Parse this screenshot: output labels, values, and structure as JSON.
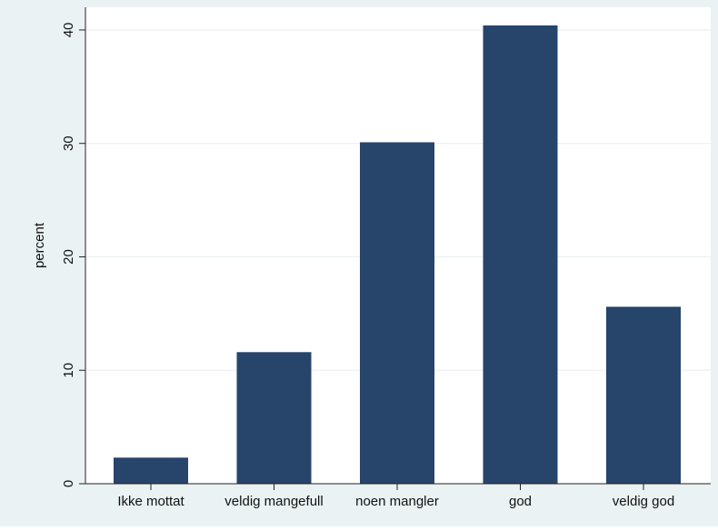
{
  "chart_data": {
    "type": "bar",
    "title": "",
    "xlabel": "",
    "ylabel": "percent",
    "categories": [
      "Ikke mottat",
      "veldig mangefull",
      "noen mangler",
      "god",
      "veldig god"
    ],
    "values": [
      2.3,
      11.6,
      30.1,
      40.4,
      15.6
    ],
    "ylim": [
      0,
      42
    ],
    "yticks": [
      "0",
      "10",
      "20",
      "30",
      "40"
    ],
    "grid": true,
    "legend": "none",
    "colors": {
      "background": "#eaf2f3",
      "plot_area": "#ffffff",
      "bar": "#27446a",
      "grid": "#eef2f3"
    }
  }
}
